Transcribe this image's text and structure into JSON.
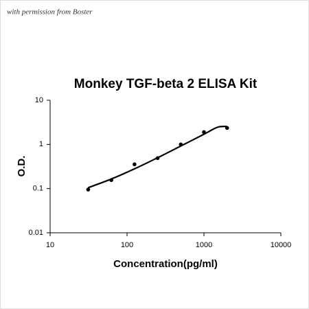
{
  "chart_data": {
    "type": "scatter",
    "annotation": "with permission from Boster",
    "title": "Monkey TGF-beta 2 ELISA Kit",
    "x_label": "Concentration(pg/ml)",
    "y_label": "O.D.",
    "xscale": "log",
    "yscale": "log",
    "xlim": [
      10,
      10000
    ],
    "ylim": [
      0.01,
      10
    ],
    "xticks": [
      10,
      100,
      1000,
      10000
    ],
    "yticks": [
      0.01,
      0.1,
      1,
      10
    ],
    "series": [
      {
        "type": "scatter",
        "color": "#000000",
        "x": [
          31.25,
          62.5,
          125,
          250,
          500,
          1000,
          2000
        ],
        "values": [
          0.095,
          0.156,
          0.355,
          0.49,
          1.0,
          1.9,
          2.36
        ]
      },
      {
        "type": "line",
        "color": "#000000",
        "x": [
          31.25,
          62.5,
          125,
          250,
          500,
          1000,
          1500,
          2000
        ],
        "values": [
          0.105,
          0.165,
          0.28,
          0.5,
          0.92,
          1.7,
          2.45,
          2.55
        ]
      }
    ]
  }
}
